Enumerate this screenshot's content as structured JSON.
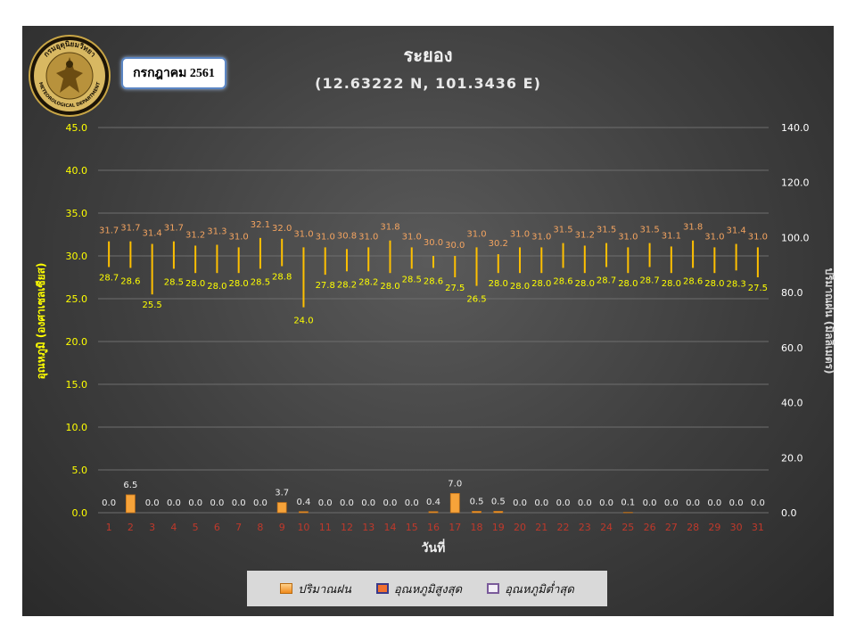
{
  "header": {
    "title": "ระยอง",
    "subtitle": "(12.63222 N, 101.3436 E)",
    "month": "กรกฎาคม 2561"
  },
  "seal": {
    "top_text": "กรมอุตุนิยมวิทยา",
    "bottom_text": "METEOROLOGICAL DEPARTMENT"
  },
  "colors": {
    "background": "#3e3e3e",
    "temp_line": "#ffc000",
    "max_label": "#f4a460",
    "min_label": "#ffff00",
    "rain_bar": "#f6a33a",
    "axis_left": "#ffff00",
    "axis_right": "#ffffff",
    "x_tick": "#c0392b"
  },
  "legend": {
    "rain": "ปริมาณฝน",
    "max": "อุณหภูมิสูงสุด",
    "min": "อุณหภูมิต่ำสุด"
  },
  "chart_data": {
    "type": "bar",
    "xlabel": "วันที่",
    "ylabel": "อุณหภูมิ (องศาเซลเซียส)",
    "y2label": "ปริมาณฝน (มิลลิเมตร)",
    "ylim": [
      0,
      45
    ],
    "y2lim": [
      0,
      140
    ],
    "yticks": [
      "0.0",
      "5.0",
      "10.0",
      "15.0",
      "20.0",
      "25.0",
      "30.0",
      "35.0",
      "40.0",
      "45.0"
    ],
    "y2ticks": [
      "0.0",
      "20.0",
      "40.0",
      "60.0",
      "80.0",
      "100.0",
      "120.0",
      "140.0"
    ],
    "grid": true,
    "legend_position": "bottom",
    "categories": [
      "1",
      "2",
      "3",
      "4",
      "5",
      "6",
      "7",
      "8",
      "9",
      "10",
      "11",
      "12",
      "13",
      "14",
      "15",
      "16",
      "17",
      "18",
      "19",
      "20",
      "21",
      "22",
      "23",
      "24",
      "25",
      "26",
      "27",
      "28",
      "29",
      "30",
      "31"
    ],
    "series": [
      {
        "name": "อุณหภูมิสูงสุด",
        "values": [
          31.7,
          31.7,
          31.4,
          31.7,
          31.2,
          31.3,
          31.0,
          32.1,
          32.0,
          31.0,
          31.0,
          30.8,
          31.0,
          31.8,
          31.0,
          30.0,
          30.0,
          31.0,
          30.2,
          31.0,
          31.0,
          31.5,
          31.2,
          31.5,
          31.0,
          31.5,
          31.1,
          31.8,
          31.0,
          31.4,
          31.0
        ]
      },
      {
        "name": "อุณหภูมิต่ำสุด",
        "values": [
          28.7,
          28.6,
          25.5,
          28.5,
          28.0,
          28.0,
          28.0,
          28.5,
          28.8,
          24.0,
          27.8,
          28.2,
          28.2,
          28.0,
          28.5,
          28.6,
          27.5,
          26.5,
          28.0,
          28.0,
          28.0,
          28.6,
          28.0,
          28.7,
          28.0,
          28.7,
          28.0,
          28.6,
          28.0,
          28.3,
          27.5
        ]
      },
      {
        "name": "ปริมาณฝน",
        "axis": "right",
        "values": [
          0.0,
          6.5,
          0.0,
          0.0,
          0.0,
          0.0,
          0.0,
          0.0,
          3.7,
          0.4,
          0.0,
          0.0,
          0.0,
          0.0,
          0.0,
          0.4,
          7.0,
          0.5,
          0.5,
          0.0,
          0.0,
          0.0,
          0.0,
          0.0,
          0.1,
          0.0,
          0.0,
          0.0,
          0.0,
          0.0,
          0.0
        ]
      }
    ]
  }
}
